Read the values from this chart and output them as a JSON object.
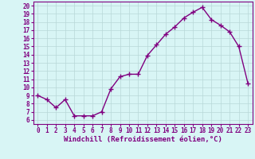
{
  "x": [
    0,
    1,
    2,
    3,
    4,
    5,
    6,
    7,
    8,
    9,
    10,
    11,
    12,
    13,
    14,
    15,
    16,
    17,
    18,
    19,
    20,
    21,
    22,
    23
  ],
  "y": [
    9,
    8.5,
    7.5,
    8.5,
    6.5,
    6.5,
    6.5,
    7,
    9.8,
    11.3,
    11.6,
    11.6,
    13.9,
    15.2,
    16.5,
    17.4,
    18.5,
    19.2,
    19.8,
    18.3,
    17.6,
    16.8,
    15.0,
    10.5
  ],
  "line_color": "#800080",
  "marker": "+",
  "markersize": 4,
  "linewidth": 1.0,
  "xlabel": "Windchill (Refroidissement éolien,°C)",
  "xlabel_fontsize": 6.5,
  "ylabel_ticks": [
    6,
    7,
    8,
    9,
    10,
    11,
    12,
    13,
    14,
    15,
    16,
    17,
    18,
    19,
    20
  ],
  "xlim": [
    -0.5,
    23.5
  ],
  "ylim": [
    5.5,
    20.5
  ],
  "bg_color": "#d8f5f5",
  "grid_color": "#b8d8d8",
  "tick_label_color": "#800080",
  "tick_label_fontsize": 5.5,
  "xlabel_color": "#800080",
  "spine_color": "#800080"
}
